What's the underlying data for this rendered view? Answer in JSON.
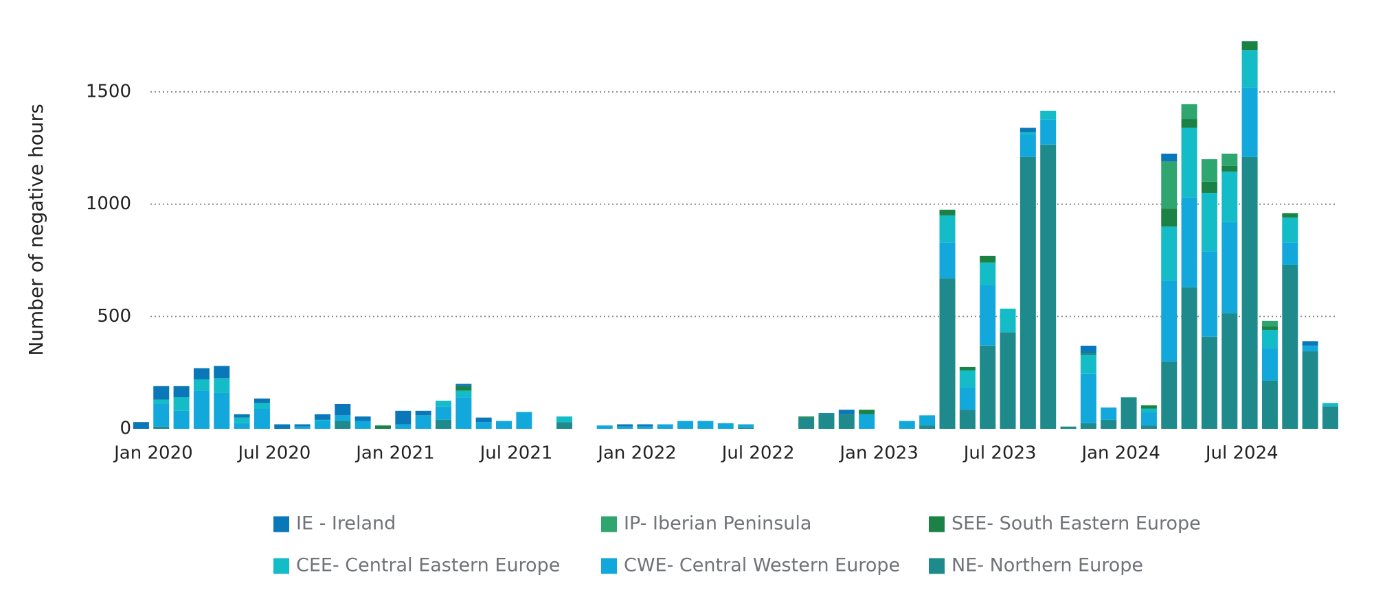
{
  "chart_data": {
    "type": "stacked_bar",
    "y_label": "Number of negative hours",
    "categories": [
      "Jan 2020",
      null,
      null,
      null,
      null,
      null,
      "Jul 2020",
      null,
      null,
      null,
      null,
      null,
      "Jan 2021",
      null,
      null,
      null,
      null,
      null,
      "Jul 2021",
      null,
      null,
      null,
      null,
      null,
      "Jan 2022",
      null,
      null,
      null,
      null,
      null,
      "Jul 2022",
      null,
      null,
      null,
      null,
      null,
      "Jan 2023",
      null,
      null,
      null,
      null,
      null,
      "Jul 2023",
      null,
      null,
      null,
      null,
      null,
      "Jan 2024",
      null,
      null,
      null,
      null,
      null,
      "Jul 2024",
      null,
      null,
      null,
      null,
      null
    ],
    "ylim": [
      0,
      1750
    ],
    "yticks": [
      0,
      500,
      1000,
      1500
    ],
    "grid": true,
    "series": [
      {
        "name": "IE - Ireland",
        "color": "#0a77b8",
        "values": [
          30,
          60,
          50,
          50,
          55,
          15,
          20,
          20,
          10,
          25,
          50,
          20,
          0,
          60,
          20,
          0,
          10,
          20,
          0,
          0,
          0,
          0,
          0,
          0,
          10,
          10,
          0,
          0,
          0,
          0,
          0,
          0,
          0,
          0,
          5,
          20,
          0,
          0,
          0,
          0,
          0,
          0,
          0,
          0,
          20,
          0,
          0,
          35,
          0,
          0,
          0,
          35,
          0,
          0,
          0,
          0,
          0,
          0,
          20,
          0
        ]
      },
      {
        "name": "IP- Iberian Peninsula",
        "color": "#2fa56f",
        "values": [
          0,
          0,
          0,
          0,
          0,
          0,
          0,
          0,
          0,
          0,
          0,
          0,
          0,
          0,
          0,
          0,
          0,
          0,
          0,
          0,
          0,
          0,
          0,
          0,
          0,
          0,
          0,
          0,
          0,
          0,
          0,
          0,
          0,
          0,
          0,
          0,
          0,
          0,
          0,
          0,
          0,
          0,
          0,
          0,
          0,
          0,
          0,
          0,
          0,
          0,
          0,
          210,
          65,
          100,
          55,
          0,
          25,
          0,
          0,
          0
        ]
      },
      {
        "name": "SEE- South Eastern Europe",
        "color": "#1a8245",
        "values": [
          0,
          0,
          0,
          0,
          0,
          0,
          0,
          0,
          0,
          0,
          0,
          0,
          15,
          0,
          0,
          0,
          20,
          0,
          0,
          0,
          0,
          0,
          0,
          0,
          0,
          0,
          0,
          0,
          0,
          0,
          0,
          0,
          0,
          5,
          0,
          0,
          20,
          0,
          0,
          0,
          25,
          15,
          30,
          0,
          0,
          0,
          0,
          5,
          0,
          0,
          15,
          80,
          40,
          50,
          25,
          40,
          15,
          20,
          0,
          0
        ]
      },
      {
        "name": "CEE- Central Eastern Europe",
        "color": "#14bcc8",
        "values": [
          0,
          20,
          60,
          50,
          65,
          25,
          25,
          0,
          0,
          5,
          0,
          0,
          0,
          0,
          0,
          25,
          30,
          0,
          0,
          0,
          0,
          25,
          0,
          0,
          0,
          0,
          0,
          0,
          0,
          0,
          0,
          0,
          0,
          0,
          0,
          0,
          0,
          0,
          0,
          0,
          120,
          75,
          100,
          105,
          10,
          40,
          0,
          85,
          0,
          0,
          15,
          240,
          310,
          260,
          225,
          165,
          80,
          110,
          0,
          15
        ]
      },
      {
        "name": "CWE- Central Western Europe",
        "color": "#13a8dc",
        "values": [
          0,
          100,
          80,
          170,
          160,
          25,
          90,
          0,
          10,
          35,
          25,
          35,
          0,
          20,
          60,
          60,
          140,
          30,
          35,
          75,
          0,
          0,
          0,
          15,
          10,
          10,
          20,
          35,
          35,
          25,
          15,
          0,
          0,
          0,
          0,
          0,
          65,
          0,
          35,
          45,
          160,
          100,
          270,
          0,
          100,
          110,
          0,
          220,
          55,
          0,
          60,
          360,
          400,
          380,
          405,
          310,
          145,
          100,
          25,
          0
        ]
      },
      {
        "name": "NE- Northern Europe",
        "color": "#1e8a8c",
        "values": [
          0,
          10,
          0,
          0,
          0,
          0,
          0,
          0,
          0,
          0,
          35,
          0,
          0,
          0,
          0,
          40,
          0,
          0,
          0,
          0,
          0,
          30,
          0,
          0,
          0,
          0,
          0,
          0,
          0,
          0,
          5,
          0,
          0,
          50,
          65,
          65,
          0,
          0,
          0,
          15,
          670,
          85,
          370,
          430,
          1210,
          1265,
          10,
          25,
          40,
          140,
          15,
          300,
          630,
          410,
          515,
          1210,
          215,
          730,
          345,
          100
        ]
      }
    ]
  }
}
